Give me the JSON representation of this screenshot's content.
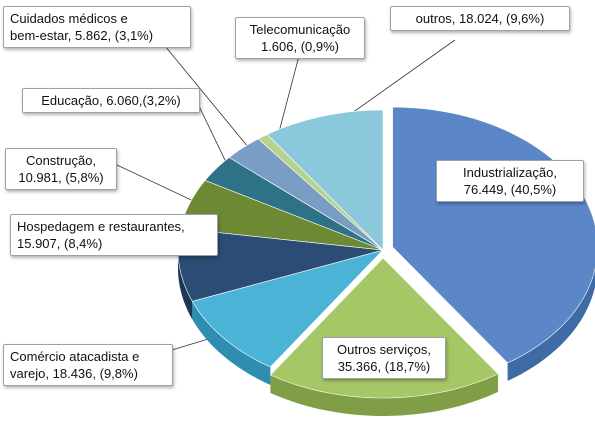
{
  "chart_data": {
    "type": "pie",
    "style": "3d-exploded",
    "slices": [
      {
        "label_lines": [
          "Industrialização,",
          "76.449, (40,5%)"
        ],
        "value": 76449,
        "percent": 40.5,
        "color": "#5b87c8",
        "side": "#3e6aa6"
      },
      {
        "label_lines": [
          "Outros serviços,",
          "35.366, (18,7%)"
        ],
        "value": 35366,
        "percent": 18.7,
        "color": "#a6c766",
        "side": "#7f9e45"
      },
      {
        "label_lines": [
          "Comércio atacadista e",
          "varejo, 18.436, (9,8%)"
        ],
        "value": 18436,
        "percent": 9.8,
        "color": "#4bb3d6",
        "side": "#2e8eb0"
      },
      {
        "label_lines": [
          "Hospedagem e restaurantes,",
          "15.907, (8,4%)"
        ],
        "value": 15907,
        "percent": 8.4,
        "color": "#2b4d75",
        "side": "#1d3656"
      },
      {
        "label_lines": [
          "Construção,",
          "10.981, (5,8%)"
        ],
        "value": 10981,
        "percent": 5.8,
        "color": "#6c8a34",
        "side": "#506826"
      },
      {
        "label_lines": [
          "Educação, 6.060,(3,2%)"
        ],
        "value": 6060,
        "percent": 3.2,
        "color": "#2e7287",
        "side": "#1f5364"
      },
      {
        "label_lines": [
          "Cuidados médicos e",
          "bem-estar, 5.862, (3,1%)"
        ],
        "value": 5862,
        "percent": 3.1,
        "color": "#7a9dc6",
        "side": "#5a7ca4"
      },
      {
        "label_lines": [
          "Telecomunicação",
          "1.606, (0,9%)"
        ],
        "value": 1606,
        "percent": 0.9,
        "color": "#b7d28a",
        "side": "#90ad62"
      },
      {
        "label_lines": [
          "outros, 18.024, (9,6%)"
        ],
        "value": 18024,
        "percent": 9.6,
        "color": "#8cc8dc",
        "side": "#62a7c0"
      }
    ]
  }
}
